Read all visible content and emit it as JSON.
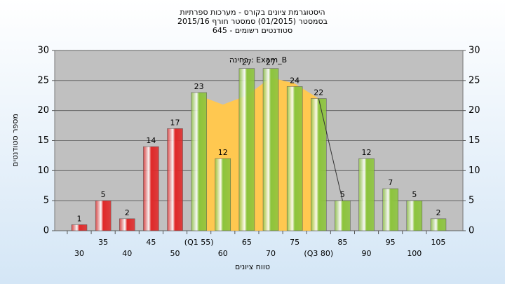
{
  "chart_data": {
    "type": "bar",
    "title": [
      "היסטוגרמת ציונים בקורס - מערכות ספרתיות",
      "בסמסטר  (01/2015)  סמסטר חורף 2015/16",
      "סטודנטים רשומים - 645"
    ],
    "legend_text": "בחינה : Exam_B",
    "x_label": "טווח ציונים",
    "y_label": "מספר סטודנטים",
    "categories": [
      "30",
      "35",
      "40",
      "45",
      "50",
      "(Q1 55)",
      "60",
      "65",
      "70",
      "75",
      "(Q3 80)",
      "85",
      "90",
      "95",
      "100",
      "105"
    ],
    "values": [
      1,
      5,
      2,
      14,
      17,
      23,
      12,
      27,
      27,
      24,
      22,
      5,
      12,
      7,
      5,
      2
    ],
    "bar_colors": [
      "#e02828",
      "#e02828",
      "#e02828",
      "#e02828",
      "#e02828",
      "#8cc43c",
      "#8cc43c",
      "#8cc43c",
      "#8cc43c",
      "#8cc43c",
      "#8cc43c",
      "#8cc43c",
      "#8cc43c",
      "#8cc43c",
      "#8cc43c",
      "#8cc43c"
    ],
    "area": {
      "color": "#ffc850",
      "values": [
        null,
        null,
        null,
        null,
        null,
        22.5,
        21,
        22.5,
        25.5,
        24.5,
        22,
        null,
        null,
        null,
        null,
        null
      ]
    },
    "line": {
      "color": "#333333",
      "values": [
        null,
        null,
        null,
        null,
        null,
        null,
        null,
        null,
        null,
        null,
        22,
        5,
        null,
        null,
        null,
        null
      ]
    },
    "ylim": [
      0,
      30
    ],
    "yticks": [
      0,
      5,
      10,
      15,
      20,
      25,
      30
    ],
    "grid": true
  }
}
